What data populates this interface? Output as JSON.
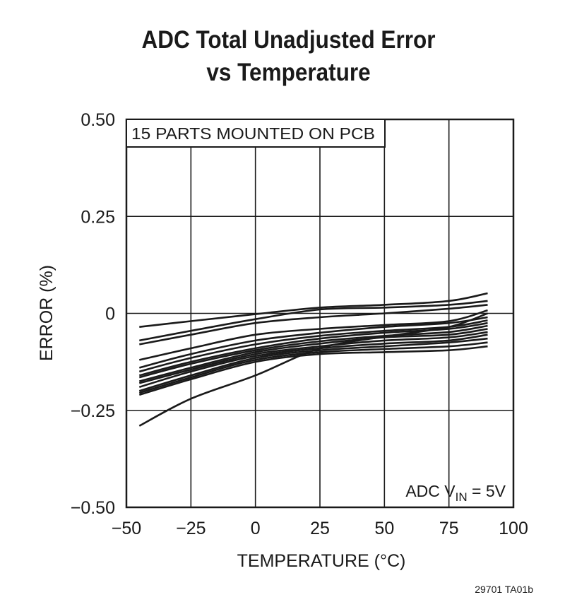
{
  "chart_data": {
    "type": "line",
    "title_lines": [
      "ADC Total Unadjusted Error",
      "vs Temperature"
    ],
    "xlabel": "TEMPERATURE (°C)",
    "ylabel": "ERROR (%)",
    "xlim": [
      -50,
      100
    ],
    "ylim": [
      -0.5,
      0.5
    ],
    "x_ticks": [
      -50,
      -25,
      0,
      25,
      50,
      75,
      100
    ],
    "x_tick_labels": [
      "−50",
      "−25",
      "0",
      "25",
      "50",
      "75",
      "100"
    ],
    "y_ticks": [
      -0.5,
      -0.25,
      0,
      0.25,
      0.5
    ],
    "y_tick_labels": [
      "−0.50",
      "−0.25",
      "0",
      "0.25",
      "0.50"
    ],
    "grid": true,
    "annotations": {
      "top_left": "15 PARTS MOUNTED ON PCB",
      "bottom_right_prefix": "ADC V",
      "bottom_right_sub": "IN",
      "bottom_right_suffix": " = 5V"
    },
    "x": [
      -45,
      -25,
      0,
      25,
      50,
      75,
      90
    ],
    "series": [
      {
        "values": [
          -0.035,
          -0.02,
          -0.002,
          0.015,
          0.022,
          0.032,
          0.052
        ]
      },
      {
        "values": [
          -0.07,
          -0.045,
          -0.015,
          0.01,
          0.015,
          0.022,
          0.032
        ]
      },
      {
        "values": [
          -0.08,
          -0.055,
          -0.025,
          -0.01,
          0.0,
          0.012,
          0.022
        ]
      },
      {
        "values": [
          -0.12,
          -0.09,
          -0.055,
          -0.04,
          -0.03,
          -0.02,
          0.008
        ]
      },
      {
        "values": [
          -0.14,
          -0.105,
          -0.07,
          -0.05,
          -0.035,
          -0.025,
          -0.01
        ]
      },
      {
        "values": [
          -0.15,
          -0.115,
          -0.08,
          -0.058,
          -0.045,
          -0.035,
          -0.018
        ]
      },
      {
        "values": [
          -0.16,
          -0.125,
          -0.09,
          -0.065,
          -0.05,
          -0.04,
          -0.025
        ]
      },
      {
        "values": [
          -0.165,
          -0.13,
          -0.095,
          -0.072,
          -0.058,
          -0.048,
          -0.032
        ]
      },
      {
        "values": [
          -0.175,
          -0.14,
          -0.1,
          -0.078,
          -0.062,
          -0.055,
          -0.04
        ]
      },
      {
        "values": [
          -0.18,
          -0.145,
          -0.105,
          -0.085,
          -0.07,
          -0.062,
          -0.048
        ]
      },
      {
        "values": [
          -0.19,
          -0.15,
          -0.11,
          -0.09,
          -0.078,
          -0.07,
          -0.055
        ]
      },
      {
        "values": [
          -0.2,
          -0.16,
          -0.115,
          -0.095,
          -0.085,
          -0.075,
          -0.065
        ]
      },
      {
        "values": [
          -0.205,
          -0.165,
          -0.12,
          -0.1,
          -0.092,
          -0.085,
          -0.075
        ]
      },
      {
        "values": [
          -0.21,
          -0.17,
          -0.125,
          -0.105,
          -0.1,
          -0.095,
          -0.085
        ]
      },
      {
        "values": [
          -0.29,
          -0.22,
          -0.16,
          -0.09,
          -0.06,
          -0.035,
          0.0
        ]
      }
    ]
  },
  "figure_code": "29701 TA01b"
}
